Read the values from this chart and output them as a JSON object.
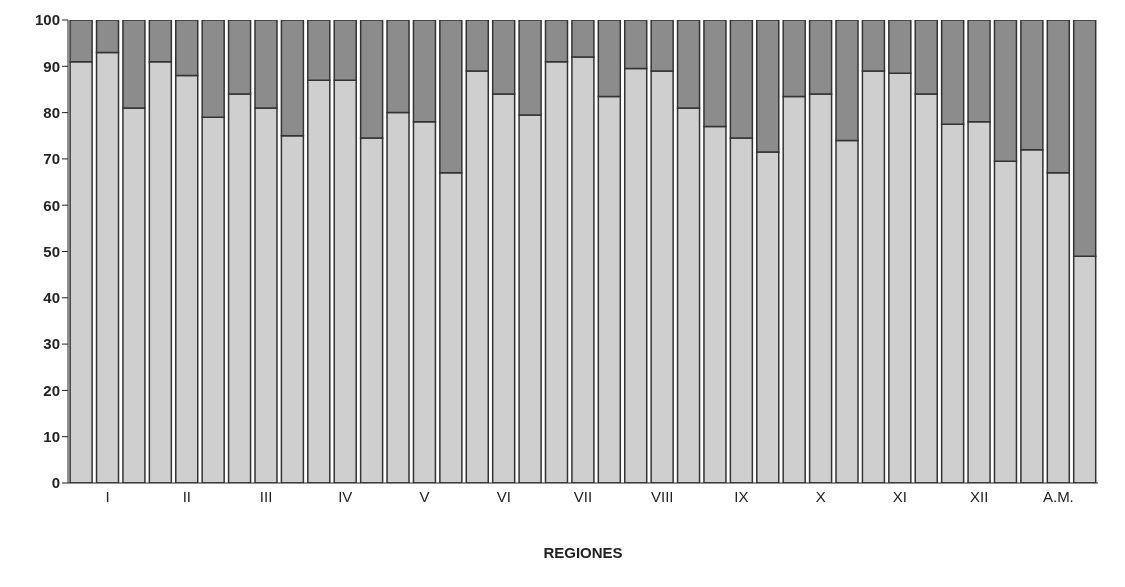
{
  "chart_data": {
    "type": "bar",
    "stacked": true,
    "xlabel": "REGIONES",
    "categories": [
      null,
      "I",
      null,
      null,
      "II",
      null,
      null,
      "III",
      null,
      null,
      "IV",
      null,
      null,
      "V",
      null,
      null,
      "VI",
      null,
      null,
      "VII",
      null,
      null,
      "VIII",
      null,
      null,
      "IX",
      null,
      null,
      "X",
      null,
      null,
      "XI",
      null,
      null,
      "XII",
      null,
      null,
      "A.M.",
      null
    ],
    "series": [
      {
        "color": "#cfcfcf",
        "values": [
          91,
          93,
          81,
          91,
          88,
          79,
          84,
          81,
          75,
          87,
          87,
          74.5,
          80,
          78,
          67,
          89,
          84,
          79.5,
          91,
          92,
          83.5,
          89.5,
          89,
          81,
          77,
          74.5,
          71.5,
          83.5,
          84,
          74,
          89,
          88.5,
          84,
          77.5,
          78,
          69.5,
          72,
          67,
          49
        ]
      },
      {
        "color": "#8c8c8c",
        "values": [
          9,
          7,
          19,
          9,
          12,
          21,
          16,
          19,
          25,
          13,
          13,
          25.5,
          20,
          22,
          33,
          11,
          16,
          20.5,
          9,
          8,
          16.5,
          10.5,
          11,
          19,
          23,
          25.5,
          28.5,
          16.5,
          16,
          26,
          11,
          11.5,
          16,
          22.5,
          22,
          30.5,
          28,
          33,
          51
        ]
      }
    ],
    "ylim": [
      0,
      100
    ],
    "yticks": [
      0,
      10,
      20,
      30,
      40,
      50,
      60,
      70,
      80,
      90,
      100
    ],
    "grid": false,
    "legend": false
  }
}
